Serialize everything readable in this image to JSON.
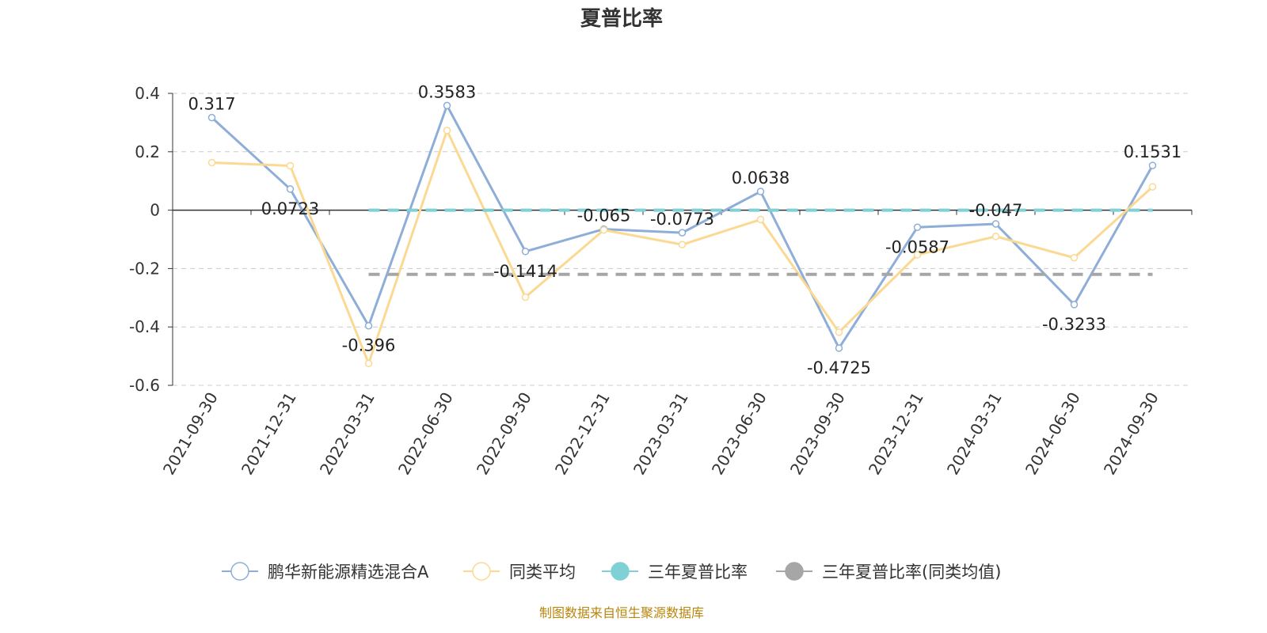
{
  "title": "夏普比率",
  "source_note": "制图数据来自恒生聚源数据库",
  "colors": {
    "fund": "#8eaed8",
    "avg": "#fbd993",
    "three_year": "#7fd1d6",
    "three_year_avg": "#a6a6a6",
    "zero_axis": "#333333",
    "grid": "#cccccc"
  },
  "chart_data": {
    "type": "line",
    "title": "夏普比率",
    "x": [
      "2021-09-30",
      "2021-12-31",
      "2022-03-31",
      "2022-06-30",
      "2022-09-30",
      "2022-12-31",
      "2023-03-31",
      "2023-06-30",
      "2023-09-30",
      "2023-12-31",
      "2024-03-31",
      "2024-06-30",
      "2024-09-30"
    ],
    "ylim": [
      -0.6,
      0.4
    ],
    "yticks": [
      "0.4",
      "0.2",
      "0",
      "-0.2",
      "-0.4",
      "-0.6"
    ],
    "grid": true,
    "legend_position": "bottom",
    "series": [
      {
        "name": "鹏华新能源精选混合A",
        "values": [
          0.317,
          0.0723,
          -0.396,
          0.3583,
          -0.1414,
          -0.065,
          -0.0773,
          0.0638,
          -0.4725,
          -0.0587,
          -0.047,
          -0.3233,
          0.1531
        ],
        "labels": [
          "0.317",
          "0.0723",
          "-0.396",
          "0.3583",
          "-0.1414",
          "-0.065",
          "-0.0773",
          "0.0638",
          "-0.4725",
          "-0.0587",
          "-0.047",
          "-0.3233",
          "0.1531"
        ]
      },
      {
        "name": "同类平均",
        "values": [
          0.163,
          0.152,
          -0.525,
          0.273,
          -0.298,
          -0.068,
          -0.118,
          -0.032,
          -0.418,
          -0.153,
          -0.09,
          -0.163,
          0.08
        ]
      },
      {
        "name": "三年夏普比率",
        "values": [
          null,
          null,
          0.0,
          0.0,
          0.0,
          0.0,
          0.0,
          0.0,
          0.0,
          0.0,
          0.0,
          0.0,
          0.0
        ],
        "style": "dashed"
      },
      {
        "name": "三年夏普比率(同类均值)",
        "values": [
          null,
          null,
          -0.22,
          -0.22,
          -0.22,
          -0.22,
          -0.22,
          -0.22,
          -0.22,
          -0.22,
          -0.22,
          -0.22,
          -0.22
        ],
        "style": "dashed"
      }
    ]
  }
}
